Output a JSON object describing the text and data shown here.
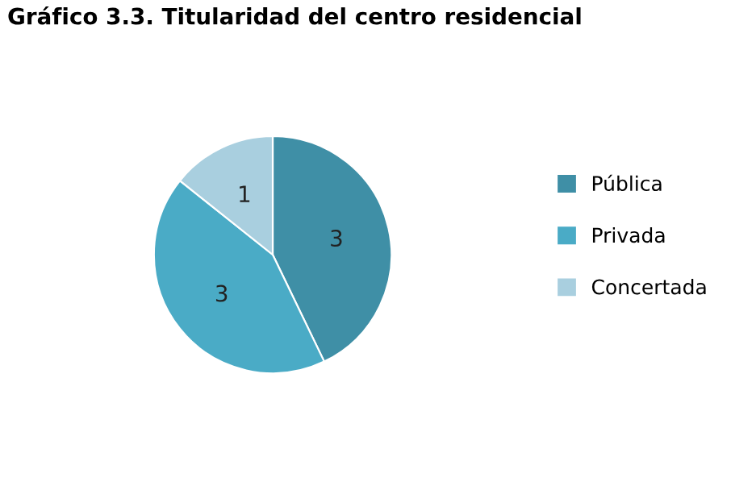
{
  "chart_data": {
    "type": "pie",
    "title": "Gráfico 3.3. Titularidad del centro residencial",
    "categories": [
      "Pública",
      "Privada",
      "Concertada"
    ],
    "values": [
      3,
      3,
      1
    ],
    "colors": [
      "#3f8fa6",
      "#4aabc6",
      "#a9cfdf"
    ],
    "data_labels": true,
    "legend": "right"
  }
}
